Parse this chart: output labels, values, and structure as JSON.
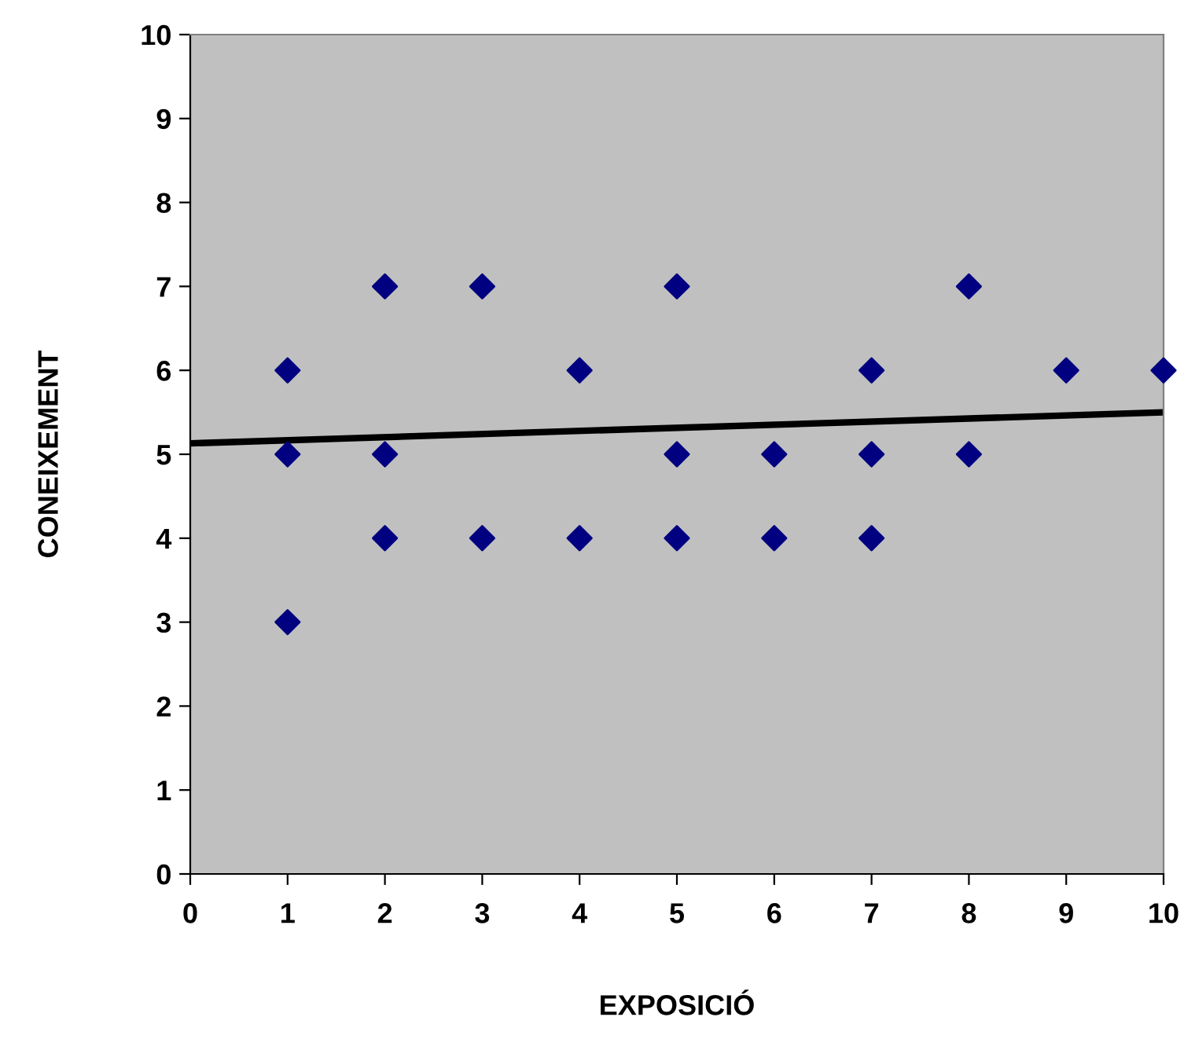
{
  "chart_data": {
    "type": "scatter",
    "xlabel": "EXPOSICIÓ",
    "ylabel": "CONEIXEMENT",
    "xlim": [
      0,
      10
    ],
    "ylim": [
      0,
      10
    ],
    "xticks": [
      0,
      1,
      2,
      3,
      4,
      5,
      6,
      7,
      8,
      9,
      10
    ],
    "yticks": [
      0,
      1,
      2,
      3,
      4,
      5,
      6,
      7,
      8,
      9,
      10
    ],
    "grid": false,
    "legend": false,
    "marker": "diamond",
    "series": [
      {
        "color": "#000080",
        "x": [
          1,
          1,
          1,
          2,
          2,
          2,
          3,
          3,
          4,
          4,
          5,
          5,
          5,
          6,
          6,
          7,
          7,
          7,
          8,
          8,
          9,
          10
        ],
        "values": [
          6,
          5,
          3,
          7,
          5,
          4,
          7,
          4,
          6,
          4,
          7,
          5,
          4,
          5,
          4,
          6,
          5,
          4,
          7,
          5,
          6,
          6
        ]
      },
      {
        "type": "line",
        "marker": "none",
        "color": "#000000",
        "x": [
          0,
          10
        ],
        "values": [
          5.13,
          5.5
        ]
      }
    ]
  }
}
